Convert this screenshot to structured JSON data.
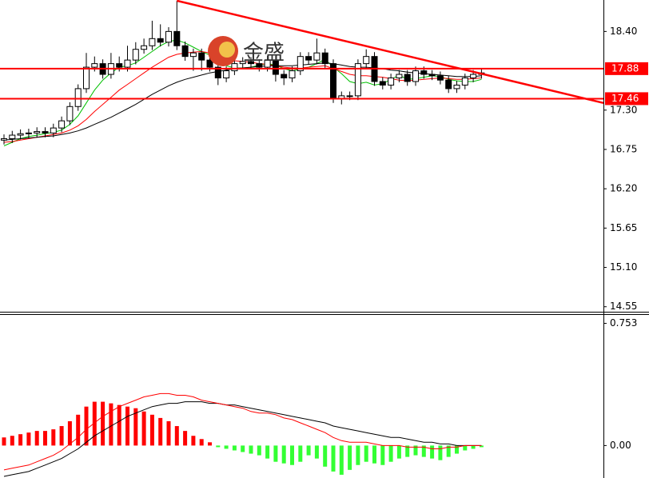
{
  "watermark": "金盛",
  "chart_data": [
    {
      "type": "candlestick",
      "ylim": [
        14.48,
        18.84
      ],
      "yticks": [
        {
          "value": 18.4,
          "label": "18.40"
        },
        {
          "value": 17.3,
          "label": "17.30"
        },
        16.75,
        {
          "value": 16.2,
          "label": "16.20"
        },
        15.65,
        {
          "value": 15.1,
          "label": "15.10"
        },
        14.55
      ],
      "up_color": "#ffffff",
      "down_color": "#000000",
      "open": [
        16.88,
        16.9,
        16.95,
        16.97,
        16.98,
        17.0,
        16.98,
        17.05,
        17.15,
        17.35,
        17.6,
        17.9,
        17.95,
        17.8,
        17.95,
        17.9,
        18.0,
        18.15,
        18.2,
        18.3,
        18.25,
        18.4,
        18.2,
        18.05,
        18.1,
        18.0,
        17.9,
        17.75,
        17.85,
        17.95,
        17.98,
        17.95,
        17.9,
        18.0,
        17.8,
        17.75,
        17.85,
        18.05,
        18.0,
        18.1,
        17.95,
        17.46,
        17.5,
        17.5,
        17.95,
        18.05,
        17.7,
        17.65,
        17.75,
        17.8,
        17.7,
        17.85,
        17.8,
        17.78,
        17.72,
        17.6,
        17.65,
        17.75,
        17.8
      ],
      "high": [
        16.96,
        17.01,
        17.03,
        17.04,
        17.06,
        17.06,
        17.11,
        17.21,
        17.41,
        17.66,
        18.1,
        18.05,
        18.01,
        18.1,
        18.05,
        18.2,
        18.25,
        18.3,
        18.55,
        18.5,
        18.46,
        18.83,
        18.26,
        18.16,
        18.16,
        18.06,
        17.96,
        17.91,
        18.01,
        18.04,
        18.04,
        18.01,
        18.06,
        18.06,
        17.86,
        17.91,
        18.11,
        18.11,
        18.3,
        18.16,
        18.01,
        17.56,
        17.56,
        18.01,
        18.15,
        18.11,
        17.76,
        17.81,
        17.86,
        17.86,
        17.91,
        17.91,
        17.86,
        17.84,
        17.78,
        17.71,
        17.81,
        17.86,
        17.88
      ],
      "low": [
        16.82,
        16.84,
        16.89,
        16.91,
        16.92,
        16.92,
        16.92,
        16.99,
        17.09,
        17.29,
        17.54,
        17.84,
        17.74,
        17.74,
        17.84,
        17.84,
        17.94,
        18.09,
        18.14,
        18.19,
        18.19,
        18.14,
        17.99,
        17.85,
        17.85,
        17.84,
        17.65,
        17.69,
        17.79,
        17.89,
        17.89,
        17.84,
        17.84,
        17.7,
        17.65,
        17.69,
        17.79,
        17.94,
        17.94,
        17.89,
        17.4,
        17.38,
        17.44,
        17.44,
        17.89,
        17.64,
        17.59,
        17.59,
        17.69,
        17.64,
        17.64,
        17.74,
        17.72,
        17.66,
        17.54,
        17.54,
        17.59,
        17.69,
        17.74
      ],
      "close": [
        16.9,
        16.95,
        16.97,
        16.98,
        17.0,
        16.98,
        17.05,
        17.15,
        17.35,
        17.6,
        17.9,
        17.95,
        17.8,
        17.95,
        17.9,
        18.0,
        18.15,
        18.2,
        18.3,
        18.25,
        18.4,
        18.2,
        18.05,
        18.1,
        18.0,
        17.9,
        17.75,
        17.85,
        17.95,
        17.98,
        17.95,
        17.9,
        18.0,
        17.8,
        17.75,
        17.85,
        18.05,
        18.0,
        18.1,
        17.95,
        17.46,
        17.5,
        17.5,
        17.95,
        18.05,
        17.7,
        17.65,
        17.75,
        17.8,
        17.7,
        17.85,
        17.8,
        17.78,
        17.72,
        17.6,
        17.65,
        17.75,
        17.8,
        17.82
      ],
      "moving_averages": [
        {
          "color": "#00c000",
          "values": [
            16.8,
            16.85,
            16.9,
            16.93,
            16.95,
            16.97,
            16.99,
            17.02,
            17.1,
            17.22,
            17.4,
            17.58,
            17.72,
            17.82,
            17.9,
            17.92,
            17.96,
            18.04,
            18.12,
            18.2,
            18.26,
            18.28,
            18.24,
            18.18,
            18.12,
            18.07,
            17.97,
            17.92,
            17.89,
            17.89,
            17.9,
            17.93,
            17.95,
            17.93,
            17.88,
            17.85,
            17.87,
            17.9,
            17.95,
            18.01,
            17.9,
            17.81,
            17.7,
            17.67,
            17.69,
            17.65,
            17.67,
            17.73,
            17.79,
            17.73,
            17.74,
            17.76,
            17.78,
            17.77,
            17.73,
            17.71,
            17.7,
            17.7,
            17.73
          ]
        },
        {
          "color": "#ff0000",
          "values": [
            16.85,
            16.86,
            16.88,
            16.9,
            16.92,
            16.94,
            16.96,
            16.98,
            17.02,
            17.08,
            17.17,
            17.28,
            17.38,
            17.48,
            17.58,
            17.66,
            17.74,
            17.82,
            17.9,
            17.97,
            18.04,
            18.08,
            18.1,
            18.11,
            18.12,
            18.1,
            18.06,
            18.02,
            17.99,
            17.98,
            17.97,
            17.95,
            17.94,
            17.92,
            17.9,
            17.89,
            17.89,
            17.9,
            17.91,
            17.92,
            17.88,
            17.84,
            17.8,
            17.78,
            17.78,
            17.77,
            17.76,
            17.74,
            17.72,
            17.71,
            17.72,
            17.73,
            17.74,
            17.75,
            17.74,
            17.73,
            17.73,
            17.74,
            17.75
          ]
        },
        {
          "color": "#000000",
          "values": [
            16.88,
            16.89,
            16.9,
            16.91,
            16.92,
            16.93,
            16.94,
            16.96,
            16.98,
            17.01,
            17.05,
            17.1,
            17.15,
            17.2,
            17.26,
            17.32,
            17.38,
            17.45,
            17.52,
            17.58,
            17.64,
            17.69,
            17.73,
            17.76,
            17.79,
            17.82,
            17.84,
            17.86,
            17.88,
            17.89,
            17.9,
            17.91,
            17.92,
            17.92,
            17.92,
            17.92,
            17.93,
            17.94,
            17.95,
            17.96,
            17.95,
            17.93,
            17.91,
            17.9,
            17.9,
            17.89,
            17.88,
            17.86,
            17.85,
            17.83,
            17.82,
            17.81,
            17.8,
            17.79,
            17.78,
            17.77,
            17.77,
            17.77,
            17.78
          ]
        }
      ],
      "levels": [
        {
          "value": 17.88,
          "label": "17.88"
        },
        {
          "value": 17.46,
          "label": "17.46"
        }
      ],
      "level_color": "#ff0000",
      "trendline": [
        18.83,
        17.4
      ]
    },
    {
      "type": "macd",
      "ylim": [
        -0.2,
        0.8
      ],
      "yticks": [
        0.753,
        {
          "value": 0,
          "label": "0.00"
        }
      ],
      "up_color": "#ff0000",
      "down_color": "#33ff33",
      "histogram": [
        0.05,
        0.06,
        0.07,
        0.08,
        0.09,
        0.09,
        0.1,
        0.12,
        0.15,
        0.19,
        0.24,
        0.27,
        0.27,
        0.26,
        0.25,
        0.24,
        0.23,
        0.21,
        0.19,
        0.17,
        0.15,
        0.12,
        0.09,
        0.06,
        0.04,
        0.02,
        -0.01,
        -0.02,
        -0.03,
        -0.04,
        -0.05,
        -0.06,
        -0.08,
        -0.1,
        -0.11,
        -0.12,
        -0.1,
        -0.06,
        -0.08,
        -0.13,
        -0.16,
        -0.18,
        -0.15,
        -0.12,
        -0.1,
        -0.11,
        -0.12,
        -0.1,
        -0.08,
        -0.07,
        -0.06,
        -0.07,
        -0.08,
        -0.09,
        -0.07,
        -0.05,
        -0.03,
        -0.02,
        -0.01
      ],
      "lines": [
        {
          "color": "#000000",
          "values": [
            -0.19,
            -0.18,
            -0.17,
            -0.16,
            -0.14,
            -0.12,
            -0.1,
            -0.08,
            -0.05,
            -0.02,
            0.02,
            0.06,
            0.09,
            0.12,
            0.15,
            0.18,
            0.2,
            0.22,
            0.24,
            0.25,
            0.26,
            0.26,
            0.27,
            0.27,
            0.27,
            0.26,
            0.26,
            0.25,
            0.25,
            0.24,
            0.23,
            0.22,
            0.21,
            0.2,
            0.19,
            0.18,
            0.17,
            0.16,
            0.15,
            0.14,
            0.12,
            0.11,
            0.1,
            0.09,
            0.08,
            0.07,
            0.06,
            0.05,
            0.05,
            0.04,
            0.03,
            0.02,
            0.02,
            0.01,
            0.01,
            0.0,
            0.0,
            0.0,
            0.0
          ]
        },
        {
          "color": "#ff0000",
          "values": [
            -0.15,
            -0.14,
            -0.13,
            -0.12,
            -0.1,
            -0.08,
            -0.06,
            -0.03,
            0.01,
            0.05,
            0.1,
            0.14,
            0.18,
            0.21,
            0.24,
            0.26,
            0.28,
            0.3,
            0.31,
            0.32,
            0.32,
            0.31,
            0.31,
            0.3,
            0.28,
            0.27,
            0.26,
            0.25,
            0.24,
            0.23,
            0.21,
            0.2,
            0.2,
            0.19,
            0.17,
            0.16,
            0.14,
            0.12,
            0.1,
            0.08,
            0.05,
            0.03,
            0.02,
            0.02,
            0.02,
            0.01,
            0.0,
            0.0,
            0.0,
            -0.01,
            -0.01,
            -0.01,
            -0.02,
            -0.02,
            -0.01,
            -0.01,
            0.0,
            0.0,
            0.0
          ]
        }
      ]
    }
  ]
}
